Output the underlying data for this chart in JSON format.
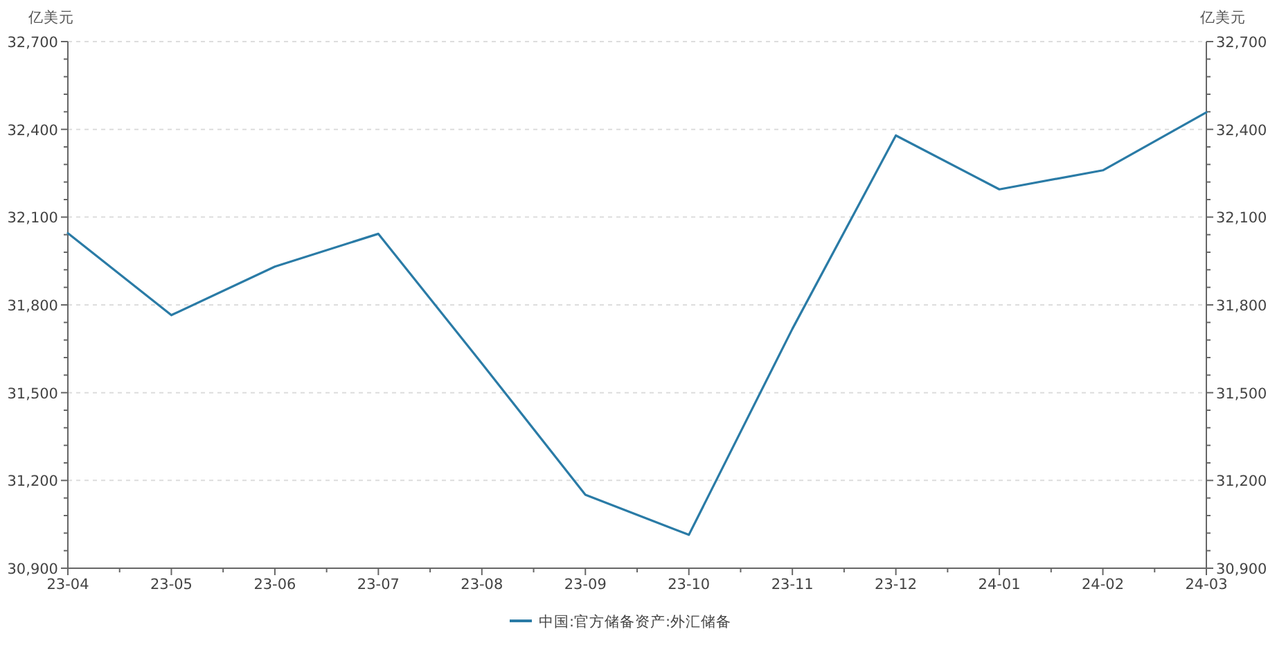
{
  "chart_data": {
    "type": "line",
    "ylabel": "亿美元",
    "y2label": "亿美元",
    "categories": [
      "23-04",
      "23-05",
      "23-06",
      "23-07",
      "23-08",
      "23-09",
      "23-10",
      "23-11",
      "23-12",
      "24-01",
      "24-02",
      "24-03"
    ],
    "series": [
      {
        "name": "中国:官方储备资产:外汇储备",
        "color": "#2a7ba6",
        "values": [
          32045,
          31765,
          31931,
          32043,
          31600,
          31151,
          31014,
          31718,
          32379,
          32195,
          32260,
          32458
        ]
      }
    ],
    "ylim": [
      30900,
      32700
    ],
    "yticks": [
      {
        "value": 30900,
        "label": "30,900"
      },
      {
        "value": 31200,
        "label": "31,200"
      },
      {
        "value": 31500,
        "label": "31,500"
      },
      {
        "value": 31800,
        "label": "31,800"
      },
      {
        "value": 32100,
        "label": "32,100"
      },
      {
        "value": 32400,
        "label": "32,400"
      },
      {
        "value": 32700,
        "label": "32,700"
      }
    ],
    "y2lim": [
      30900,
      32700
    ],
    "y2ticks": [
      {
        "value": 30900,
        "label": "30,900"
      },
      {
        "value": 31200,
        "label": "31,200"
      },
      {
        "value": 31500,
        "label": "31,500"
      },
      {
        "value": 31800,
        "label": "31,800"
      },
      {
        "value": 32100,
        "label": "32,100"
      },
      {
        "value": 32400,
        "label": "32,400"
      },
      {
        "value": 32700,
        "label": "32,700"
      }
    ],
    "grid": "y",
    "legend": "bottom",
    "marker": "none",
    "line_style": "solid"
  }
}
